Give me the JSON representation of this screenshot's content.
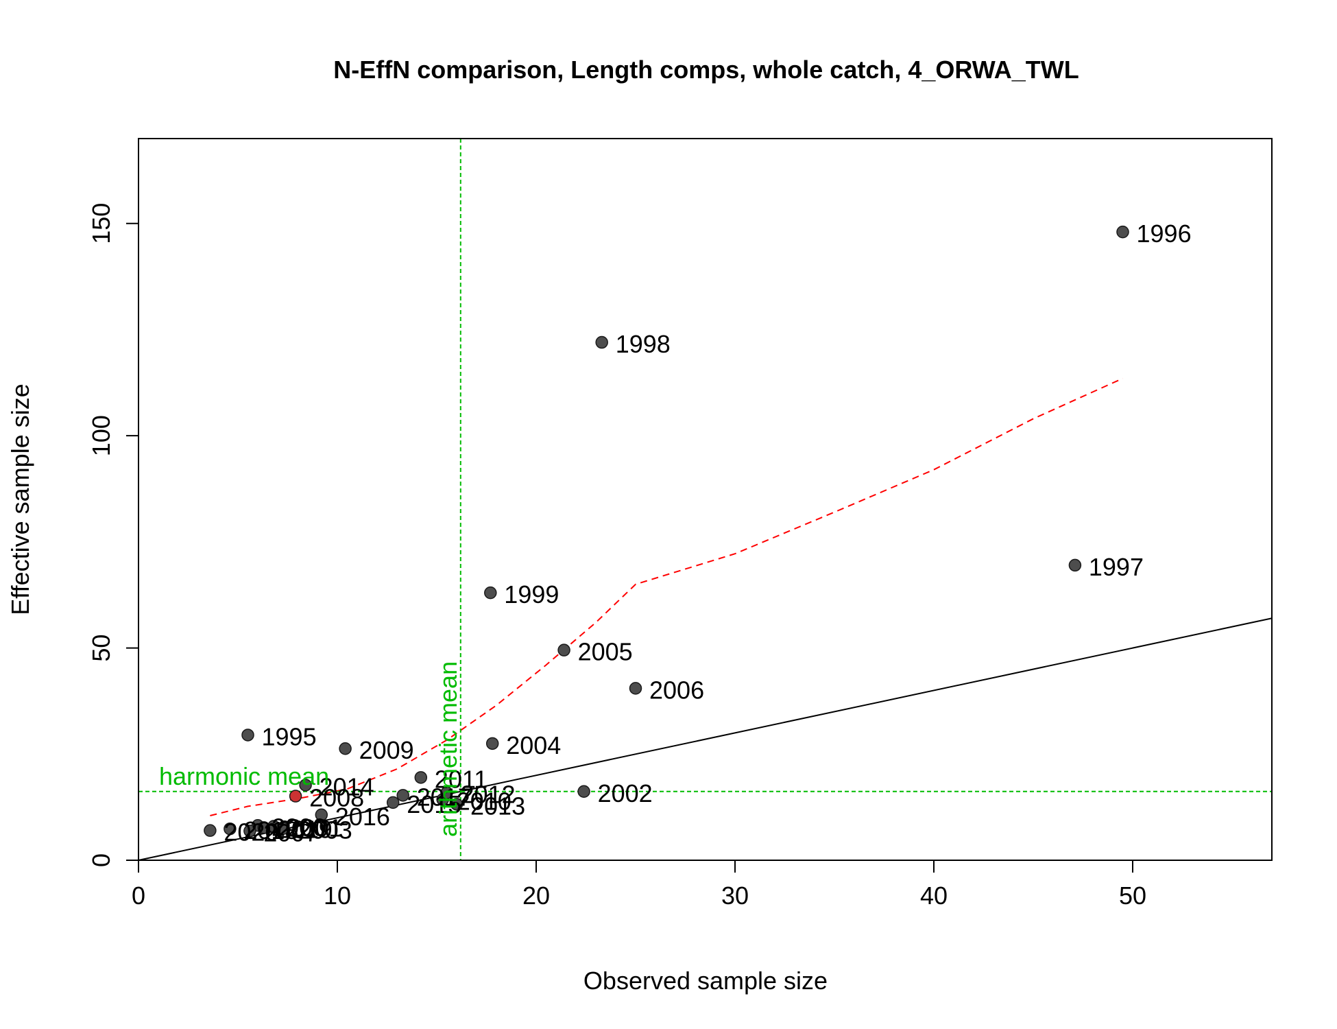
{
  "chart_data": {
    "type": "scatter",
    "title": "N-EffN comparison, Length comps, whole catch, 4_ORWA_TWL",
    "xlabel": "Observed sample size",
    "ylabel": "Effective sample size",
    "xlim": [
      0,
      57
    ],
    "ylim": [
      0,
      170
    ],
    "xticks": [
      0,
      10,
      20,
      30,
      40,
      50
    ],
    "yticks": [
      0,
      50,
      100,
      150
    ],
    "grid": false,
    "colors": {
      "points": "#4d4d4d",
      "point_outline": "#1a1a1a",
      "highlight_point": "#cc3333",
      "identity_line": "#000000",
      "trend_line": "#ff0000",
      "mean_lines": "#00bb00"
    },
    "points": [
      {
        "year": "1995",
        "x": 5.5,
        "y": 29.5
      },
      {
        "year": "1996",
        "x": 49.5,
        "y": 148
      },
      {
        "year": "1997",
        "x": 47.1,
        "y": 69.5
      },
      {
        "year": "1998",
        "x": 23.3,
        "y": 122
      },
      {
        "year": "1999",
        "x": 17.7,
        "y": 63
      },
      {
        "year": "2000",
        "x": 6.0,
        "y": 8.2
      },
      {
        "year": "2001",
        "x": 6.8,
        "y": 8.0
      },
      {
        "year": "2002",
        "x": 22.4,
        "y": 16.2
      },
      {
        "year": "2003",
        "x": 7.3,
        "y": 7.5
      },
      {
        "year": "2004",
        "x": 17.8,
        "y": 27.5
      },
      {
        "year": "2005",
        "x": 21.4,
        "y": 49.5
      },
      {
        "year": "2006",
        "x": 25.0,
        "y": 40.5
      },
      {
        "year": "2007",
        "x": 5.6,
        "y": 6.9
      },
      {
        "year": "2008",
        "x": 7.9,
        "y": 15.1,
        "highlight": true
      },
      {
        "year": "2009",
        "x": 10.4,
        "y": 26.3
      },
      {
        "year": "2010",
        "x": 15.3,
        "y": 14.3
      },
      {
        "year": "2011",
        "x": 14.2,
        "y": 19.5
      },
      {
        "year": "2012",
        "x": 15.5,
        "y": 15.9
      },
      {
        "year": "2013",
        "x": 16.0,
        "y": 13.2
      },
      {
        "year": "2014",
        "x": 8.4,
        "y": 17.7
      },
      {
        "year": "2015",
        "x": 12.8,
        "y": 13.6
      },
      {
        "year": "2016",
        "x": 9.2,
        "y": 10.7
      },
      {
        "year": "2017",
        "x": 13.3,
        "y": 15.3
      },
      {
        "year": "2018",
        "x": 4.6,
        "y": 7.4
      },
      {
        "year": "2019",
        "x": 6.3,
        "y": 7.7
      },
      {
        "year": "2020",
        "x": 3.6,
        "y": 7.0
      }
    ],
    "identity_line": {
      "x": [
        0,
        57
      ],
      "y": [
        0,
        57
      ]
    },
    "trend_line": {
      "x": [
        3.6,
        5.5,
        8,
        10.5,
        13,
        15.5,
        18,
        20.5,
        23,
        25,
        30,
        35,
        40,
        45,
        49.5
      ],
      "y": [
        10.5,
        12.7,
        14.5,
        16.8,
        21.5,
        28.3,
        36.5,
        46,
        56,
        65,
        72.2,
        82,
        92,
        104,
        113.5
      ]
    },
    "harmonic_mean": {
      "label": "harmonic mean",
      "value": 16.2
    },
    "arithmetic_mean": {
      "label": "arithmetic mean",
      "value": 16.2
    }
  }
}
